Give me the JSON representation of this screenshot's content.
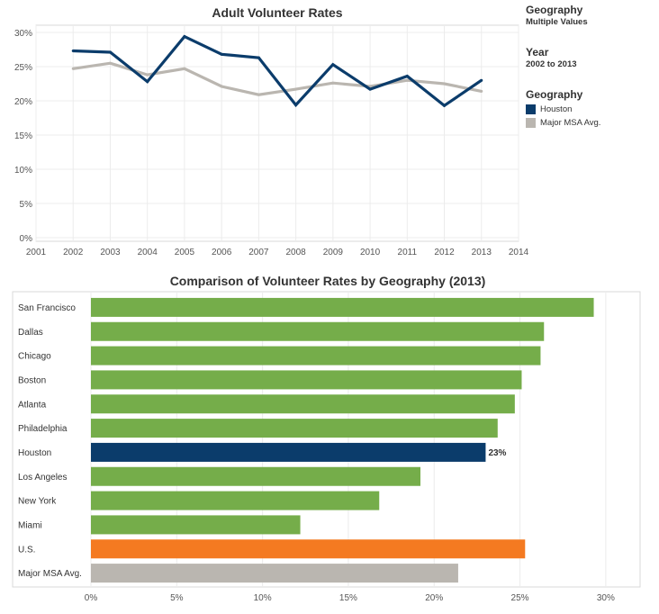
{
  "line_chart": {
    "title": "Adult Volunteer Rates"
  },
  "bar_chart": {
    "title": "Comparison of Volunteer Rates by Geography (2013)"
  },
  "legend": {
    "filter_geography": {
      "label": "Geography",
      "value": "Multiple Values"
    },
    "filter_year": {
      "label": "Year",
      "value": "2002 to 2013"
    },
    "color_legend": {
      "label": "Geography",
      "items": [
        {
          "name": "Houston",
          "color": "#0b3c6b"
        },
        {
          "name": "Major MSA Avg.",
          "color": "#bab6b0"
        }
      ]
    }
  },
  "chart_data": [
    {
      "type": "line",
      "title": "Adult Volunteer Rates",
      "xlabel": "",
      "ylabel": "",
      "x": [
        2002,
        2003,
        2004,
        2005,
        2006,
        2007,
        2008,
        2009,
        2010,
        2011,
        2012,
        2013
      ],
      "xlim": [
        2001,
        2014
      ],
      "x_ticks": [
        "2001",
        "2002",
        "2003",
        "2004",
        "2005",
        "2006",
        "2007",
        "2008",
        "2009",
        "2010",
        "2011",
        "2012",
        "2013",
        "2014"
      ],
      "ylim": [
        0,
        30
      ],
      "y_ticks": [
        0,
        5,
        10,
        15,
        20,
        25,
        30
      ],
      "y_tick_labels": [
        "0%",
        "5%",
        "10%",
        "15%",
        "20%",
        "25%",
        "30%"
      ],
      "grid": true,
      "legend_position": "right",
      "series": [
        {
          "name": "Houston",
          "color": "#0b3c6b",
          "values": [
            27.3,
            27.1,
            22.8,
            29.4,
            26.8,
            26.3,
            19.4,
            25.3,
            21.7,
            23.6,
            19.3,
            23.0
          ]
        },
        {
          "name": "Major MSA Avg.",
          "color": "#bab6b0",
          "values": [
            24.7,
            25.5,
            23.8,
            24.7,
            22.1,
            20.9,
            21.7,
            22.6,
            22.1,
            23.0,
            22.5,
            21.4
          ]
        }
      ]
    },
    {
      "type": "bar",
      "orientation": "horizontal",
      "title": "Comparison of Volunteer Rates by Geography (2013)",
      "xlabel": "",
      "ylabel": "",
      "categories": [
        "San Francisco",
        "Dallas",
        "Chicago",
        "Boston",
        "Atlanta",
        "Philadelphia",
        "Houston",
        "Los Angeles",
        "New York",
        "Miami",
        "U.S.",
        "Major MSA Avg."
      ],
      "values": [
        29.3,
        26.4,
        26.2,
        25.1,
        24.7,
        23.7,
        23.0,
        19.2,
        16.8,
        12.2,
        25.3,
        21.4
      ],
      "colors": [
        "#75ad4a",
        "#75ad4a",
        "#75ad4a",
        "#75ad4a",
        "#75ad4a",
        "#75ad4a",
        "#0b3c6b",
        "#75ad4a",
        "#75ad4a",
        "#75ad4a",
        "#f47a21",
        "#bab6b0"
      ],
      "data_labels": [
        "",
        "",
        "",
        "",
        "",
        "",
        "23%",
        "",
        "",
        "",
        "",
        ""
      ],
      "xlim": [
        0,
        32
      ],
      "x_ticks": [
        0,
        5,
        10,
        15,
        20,
        25,
        30
      ],
      "x_tick_labels": [
        "0%",
        "5%",
        "10%",
        "15%",
        "20%",
        "25%",
        "30%"
      ],
      "grid": true
    }
  ]
}
